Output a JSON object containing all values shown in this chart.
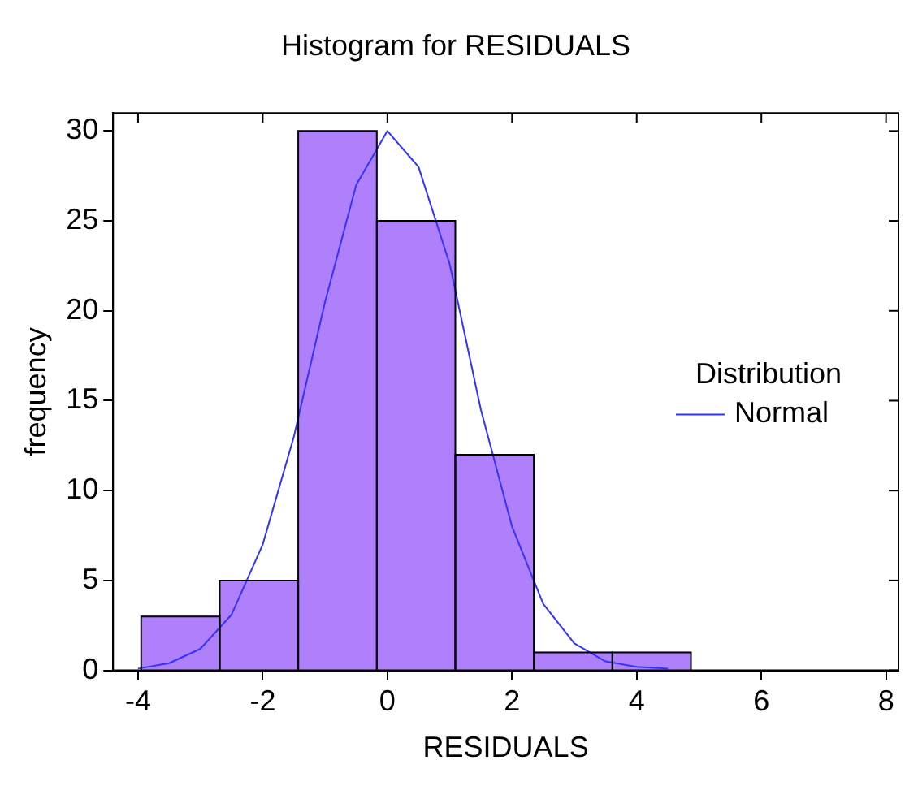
{
  "chart_data": {
    "type": "histogram",
    "title": "Histogram for RESIDUALS",
    "xlabel": "RESIDUALS",
    "ylabel": "frequency",
    "legend_title": "Distribution",
    "bins": [
      -3.95,
      -2.69,
      -1.43,
      -0.17,
      1.09,
      2.35,
      3.61,
      4.87
    ],
    "values": [
      3,
      5,
      30,
      25,
      12,
      1,
      1
    ],
    "color": "#b080fc",
    "series": [
      {
        "type": "line",
        "name": "Normal",
        "color": "#3333ff",
        "x": [
          -4,
          -3.5,
          -3,
          -2.5,
          -2,
          -1.5,
          -1,
          -0.5,
          0,
          0.5,
          1,
          1.5,
          2,
          2.5,
          3,
          3.5,
          4,
          4.5
        ],
        "values": [
          0.1,
          0.4,
          1.2,
          3.1,
          7,
          13,
          20.5,
          27,
          30,
          28,
          22.6,
          14.5,
          8,
          3.7,
          1.5,
          0.5,
          0.2,
          0.1
        ]
      }
    ],
    "xlim": [
      -4.4,
      8.2
    ],
    "xticks": [
      -4,
      -2,
      0,
      2,
      4,
      6,
      8
    ],
    "ylim": [
      0,
      31
    ],
    "yticks": [
      0,
      5,
      10,
      15,
      20,
      25,
      30
    ],
    "grid": false,
    "legend": "right",
    "marker": "none"
  }
}
